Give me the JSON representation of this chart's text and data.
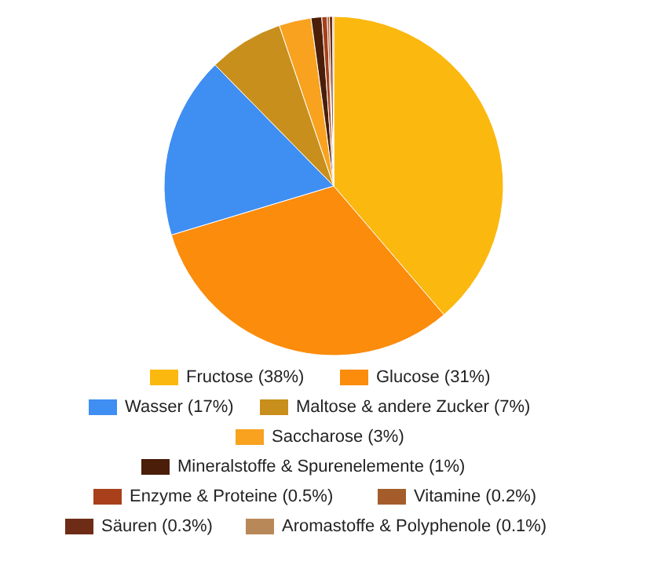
{
  "chart_data": {
    "type": "pie",
    "legend": "bottom",
    "categories": [
      "Fructose (38%)",
      "Glucose (31%)",
      "Wasser (17%)",
      "Maltose & andere Zucker (7%)",
      "Saccharose (3%)",
      "Mineralstoffe & Spurenelemente (1%)",
      "Enzyme & Proteine (0.5%)",
      "Vitamine (0.2%)",
      "Säuren (0.3%)",
      "Aromastoffe & Polyphenole (0.1%)"
    ],
    "values": [
      38,
      31,
      17,
      7,
      3,
      1,
      0.5,
      0.2,
      0.3,
      0.1
    ],
    "colors": [
      "#fbb80f",
      "#fb8c0c",
      "#3f8ef2",
      "#c98f1c",
      "#f8a21f",
      "#4a1e08",
      "#a7401b",
      "#a45d2a",
      "#6e2c17",
      "#b98858"
    ]
  }
}
